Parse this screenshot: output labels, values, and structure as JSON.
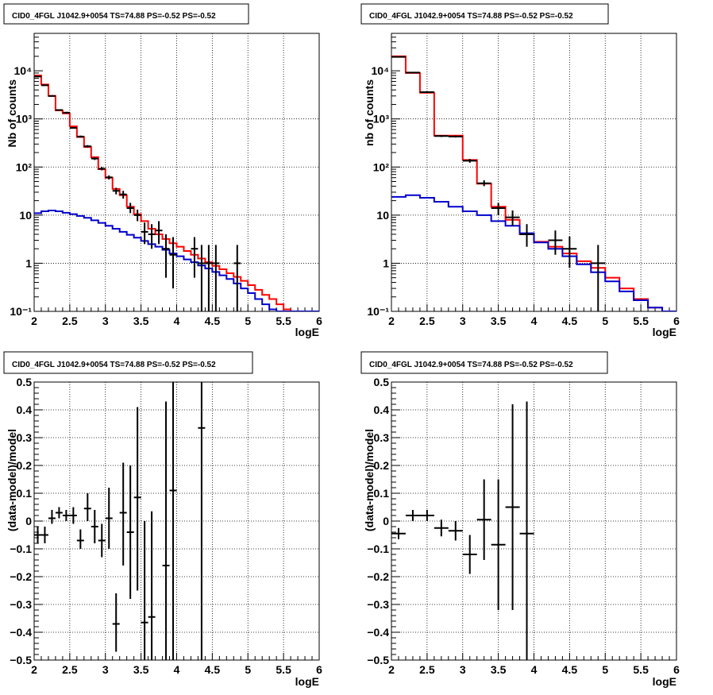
{
  "figure": {
    "background": "#ffffff"
  },
  "colors": {
    "data": "#000000",
    "total_model": "#ff0000",
    "background_model": "#0000cc",
    "grid": "#000000"
  },
  "chart_data": [
    {
      "id": "counts-full",
      "type": "line",
      "title": "CID0_4FGL J1042.9+0054 TS=74.88 PS=-0.52 PS=-0.52",
      "xlabel": "logE",
      "ylabel": "Nb of counts",
      "xlim": [
        2,
        6
      ],
      "ylim": [
        0.1,
        60000
      ],
      "yscale": "log",
      "grid": true,
      "xticks": [
        2,
        2.5,
        3,
        3.5,
        4,
        4.5,
        5,
        5.5,
        6
      ],
      "xtick_labels": [
        "2",
        "2.5",
        "3",
        "3.5",
        "4",
        "4.5",
        "5",
        "5.5",
        "6"
      ],
      "yticks": [
        0.1,
        1,
        10,
        100,
        1000,
        10000
      ],
      "ytick_labels": [
        "10⁻¹",
        "1",
        "10",
        "10²",
        "10³",
        "10⁴"
      ],
      "series": [
        {
          "kind": "hist",
          "color": "#ff0000",
          "edges": [
            2.0,
            2.1,
            2.2,
            2.3,
            2.4,
            2.5,
            2.6,
            2.7,
            2.8,
            2.9,
            3.0,
            3.1,
            3.2,
            3.3,
            3.4,
            3.5,
            3.6,
            3.7,
            3.8,
            3.9,
            4.0,
            4.1,
            4.2,
            4.3,
            4.4,
            4.5,
            4.6,
            4.7,
            4.8,
            4.9,
            5.0,
            5.1,
            5.2,
            5.3,
            5.4,
            5.5,
            5.6,
            5.7,
            5.8,
            5.9,
            6.0
          ],
          "values": [
            8000,
            5200,
            3000,
            1500,
            1300,
            700,
            420,
            260,
            160,
            90,
            60,
            35,
            26,
            15,
            10.5,
            7.5,
            5.2,
            4.0,
            3.2,
            2.6,
            2.2,
            1.8,
            1.5,
            1.25,
            1.05,
            0.88,
            0.75,
            0.62,
            0.52,
            0.43,
            0.35,
            0.28,
            0.22,
            0.18,
            0.14,
            0.11,
            0.1,
            0.1,
            0.1,
            0.1
          ]
        },
        {
          "kind": "hist",
          "color": "#0000cc",
          "edges": [
            2.0,
            2.1,
            2.2,
            2.3,
            2.4,
            2.5,
            2.6,
            2.7,
            2.8,
            2.9,
            3.0,
            3.1,
            3.2,
            3.3,
            3.4,
            3.5,
            3.6,
            3.7,
            3.8,
            3.9,
            4.0,
            4.1,
            4.2,
            4.3,
            4.4,
            4.5,
            4.6,
            4.7,
            4.8,
            4.9,
            5.0,
            5.1,
            5.2,
            5.3,
            5.4,
            5.5,
            5.6,
            5.7,
            5.8,
            5.9,
            6.0
          ],
          "values": [
            11,
            12,
            12.5,
            12,
            11.2,
            10.5,
            9.6,
            8.8,
            7.8,
            6.9,
            6.0,
            5.2,
            4.5,
            3.9,
            3.4,
            2.9,
            2.5,
            2.2,
            1.9,
            1.6,
            1.4,
            1.2,
            1.05,
            0.9,
            0.78,
            0.66,
            0.56,
            0.47,
            0.38,
            0.3,
            0.24,
            0.18,
            0.14,
            0.11,
            0.1,
            0.1,
            0.1,
            0.1,
            0.1,
            0.1
          ]
        },
        {
          "kind": "errorbar",
          "color": "#000000",
          "x": [
            2.05,
            2.15,
            2.25,
            2.35,
            2.45,
            2.55,
            2.65,
            2.75,
            2.85,
            2.95,
            3.05,
            3.15,
            3.25,
            3.35,
            3.45,
            3.55,
            3.65,
            3.75,
            3.85,
            3.95,
            4.25,
            4.35,
            4.45,
            4.55,
            4.85
          ],
          "y": [
            7600,
            5000,
            3000,
            1530,
            1350,
            650,
            430,
            270,
            150,
            92,
            61,
            32,
            27,
            14,
            10,
            4.5,
            4.0,
            4.8,
            2.0,
            1.5,
            2.0,
            1.0,
            1.0,
            1.0,
            1.0
          ],
          "ylow": [
            7450,
            4860,
            2900,
            1480,
            1300,
            630,
            410,
            255,
            140,
            85,
            55,
            27,
            22,
            11,
            7.5,
            2.5,
            2.0,
            2.5,
            0.5,
            0.3,
            0.5,
            0.1,
            0.1,
            0.1,
            0.1
          ],
          "yhigh": [
            7750,
            5140,
            3100,
            1580,
            1400,
            670,
            450,
            285,
            160,
            100,
            67,
            37,
            32,
            18,
            13,
            7,
            6.5,
            7.5,
            4.0,
            3.5,
            3.5,
            2.4,
            2.4,
            2.4,
            2.4
          ],
          "xerr": 0.05
        }
      ]
    },
    {
      "id": "counts-coarse",
      "type": "line",
      "title": "CID0_4FGL J1042.9+0054 TS=74.88 PS=-0.52 PS=-0.52",
      "xlabel": "logE",
      "ylabel": "nb of counts",
      "xlim": [
        2,
        6
      ],
      "ylim": [
        0.1,
        60000
      ],
      "yscale": "log",
      "grid": true,
      "xticks": [
        2,
        2.5,
        3,
        3.5,
        4,
        4.5,
        5,
        5.5,
        6
      ],
      "xtick_labels": [
        "2",
        "2.5",
        "3",
        "3.5",
        "4",
        "4.5",
        "5",
        "5.5",
        "6"
      ],
      "yticks": [
        0.1,
        1,
        10,
        100,
        1000,
        10000
      ],
      "ytick_labels": [
        "10⁻¹",
        "1",
        "10",
        "10²",
        "10³",
        "10⁴"
      ],
      "series": [
        {
          "kind": "hist",
          "color": "#ff0000",
          "edges": [
            2.0,
            2.2,
            2.4,
            2.6,
            2.8,
            3.0,
            3.2,
            3.4,
            3.6,
            3.8,
            4.0,
            4.2,
            4.4,
            4.6,
            4.8,
            5.0,
            5.2,
            5.4,
            5.6,
            5.8,
            6.0
          ],
          "values": [
            20000,
            9000,
            3500,
            450,
            450,
            140,
            45,
            15,
            8,
            4,
            2.8,
            2.2,
            1.6,
            1.1,
            0.8,
            0.5,
            0.3,
            0.18,
            0.12,
            0.1
          ]
        },
        {
          "kind": "hist",
          "color": "#0000cc",
          "edges": [
            2.0,
            2.2,
            2.4,
            2.6,
            2.8,
            3.0,
            3.2,
            3.4,
            3.6,
            3.8,
            4.0,
            4.2,
            4.4,
            4.6,
            4.8,
            5.0,
            5.2,
            5.4,
            5.6,
            5.8,
            6.0
          ],
          "values": [
            24,
            26,
            23,
            19,
            15,
            12,
            10,
            7.5,
            6,
            4.2,
            2.7,
            2.0,
            1.4,
            0.95,
            0.65,
            0.42,
            0.26,
            0.17,
            0.12,
            0.1
          ]
        },
        {
          "kind": "errorbar",
          "color": "#000000",
          "x": [
            2.1,
            2.3,
            2.5,
            2.7,
            2.9,
            3.1,
            3.3,
            3.5,
            3.7,
            3.9,
            4.3,
            4.5,
            4.9
          ],
          "y": [
            19500,
            9200,
            3600,
            440,
            430,
            135,
            46,
            14,
            9,
            4.0,
            3.0,
            2.0,
            1.0
          ],
          "ylow": [
            19200,
            9000,
            3500,
            420,
            410,
            123,
            40,
            10,
            6,
            2.2,
            1.5,
            0.8,
            0.1
          ],
          "yhigh": [
            19800,
            9400,
            3700,
            460,
            450,
            147,
            53,
            18,
            12.5,
            6.5,
            4.8,
            3.6,
            2.4
          ],
          "xerr": 0.1
        }
      ]
    },
    {
      "id": "residuals-full",
      "type": "scatter",
      "title": "CID0_4FGL J1042.9+0054 TS=74.88 PS=-0.52 PS=-0.52",
      "xlabel": "logE",
      "ylabel": "(data-model)/model",
      "xlim": [
        2,
        6
      ],
      "ylim": [
        -0.5,
        0.5
      ],
      "grid": true,
      "xticks": [
        2,
        2.5,
        3,
        3.5,
        4,
        4.5,
        5,
        5.5,
        6
      ],
      "xtick_labels": [
        "2",
        "2.5",
        "3",
        "3.5",
        "4",
        "4.5",
        "5",
        "5.5",
        "6"
      ],
      "yticks": [
        -0.5,
        -0.4,
        -0.3,
        -0.2,
        -0.1,
        0,
        0.1,
        0.2,
        0.3,
        0.4,
        0.5
      ],
      "ytick_labels": [
        "−0.5",
        "−0.4",
        "−0.3",
        "−0.2",
        "−0.1",
        "0",
        "0.1",
        "0.2",
        "0.3",
        "0.4",
        "0.5"
      ],
      "series": [
        {
          "kind": "errorbar",
          "color": "#000000",
          "x": [
            2.05,
            2.15,
            2.25,
            2.35,
            2.45,
            2.55,
            2.65,
            2.75,
            2.85,
            2.95,
            3.05,
            3.15,
            3.25,
            3.35,
            3.45,
            3.55,
            3.65,
            3.85,
            3.95,
            4.35
          ],
          "y": [
            -0.05,
            -0.05,
            0.01,
            0.03,
            0.02,
            0.02,
            -0.07,
            0.045,
            -0.02,
            -0.07,
            0.01,
            -0.37,
            0.03,
            -0.04,
            0.085,
            -0.365,
            -0.345,
            -0.16,
            0.11,
            0.335
          ],
          "ylow": [
            -0.08,
            -0.08,
            -0.01,
            0.01,
            0.0,
            -0.01,
            -0.1,
            0.0,
            -0.08,
            -0.13,
            -0.1,
            -0.47,
            -0.16,
            -0.28,
            -0.25,
            -0.5,
            -0.5,
            -0.5,
            -0.5,
            -0.5
          ],
          "yhigh": [
            -0.02,
            -0.02,
            0.04,
            0.05,
            0.04,
            0.05,
            -0.03,
            0.1,
            0.04,
            -0.01,
            0.12,
            -0.26,
            0.21,
            0.2,
            0.41,
            0.0,
            0.035,
            0.43,
            0.5,
            0.5
          ],
          "xerr": 0.05
        }
      ]
    },
    {
      "id": "residuals-coarse",
      "type": "scatter",
      "title": "CID0_4FGL J1042.9+0054 TS=74.88 PS=-0.52 PS=-0.52",
      "xlabel": "logE",
      "ylabel": "(data-model)/model",
      "xlim": [
        2,
        6
      ],
      "ylim": [
        -0.5,
        0.5
      ],
      "grid": true,
      "xticks": [
        2,
        2.5,
        3,
        3.5,
        4,
        4.5,
        5,
        5.5,
        6
      ],
      "xtick_labels": [
        "2",
        "2.5",
        "3",
        "3.5",
        "4",
        "4.5",
        "5",
        "5.5",
        "6"
      ],
      "yticks": [
        -0.5,
        -0.4,
        -0.3,
        -0.2,
        -0.1,
        0,
        0.1,
        0.2,
        0.3,
        0.4,
        0.5
      ],
      "ytick_labels": [
        "−0.5",
        "−0.4",
        "−0.3",
        "−0.2",
        "−0.1",
        "0",
        "0.1",
        "0.2",
        "0.3",
        "0.4",
        "0.5"
      ],
      "series": [
        {
          "kind": "errorbar",
          "color": "#000000",
          "x": [
            2.1,
            2.3,
            2.5,
            2.7,
            2.9,
            3.1,
            3.3,
            3.5,
            3.7,
            3.9
          ],
          "y": [
            -0.045,
            0.02,
            0.02,
            -0.025,
            -0.035,
            -0.12,
            0.005,
            -0.085,
            0.05,
            -0.045
          ],
          "ylow": [
            -0.065,
            0.0,
            0.0,
            -0.055,
            -0.07,
            -0.19,
            -0.14,
            -0.32,
            -0.32,
            -0.5
          ],
          "yhigh": [
            -0.025,
            0.04,
            0.04,
            0.005,
            0.0,
            -0.05,
            0.15,
            0.15,
            0.42,
            0.43
          ],
          "xerr": 0.1
        }
      ]
    }
  ]
}
